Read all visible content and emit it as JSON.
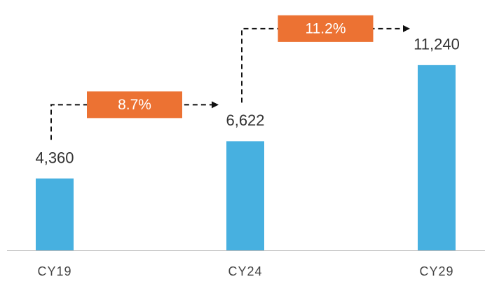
{
  "chart_data": {
    "type": "bar",
    "categories": [
      "CY19",
      "CY24",
      "CY29"
    ],
    "values": [
      4360,
      6622,
      11240
    ],
    "value_labels": [
      "4,360",
      "6,622",
      "11,240"
    ],
    "color": "#47b0e0",
    "ylim": [
      0,
      12000
    ],
    "annotations": [
      "8.7%",
      "11.2%"
    ],
    "annotation_color": "#ec7233"
  }
}
